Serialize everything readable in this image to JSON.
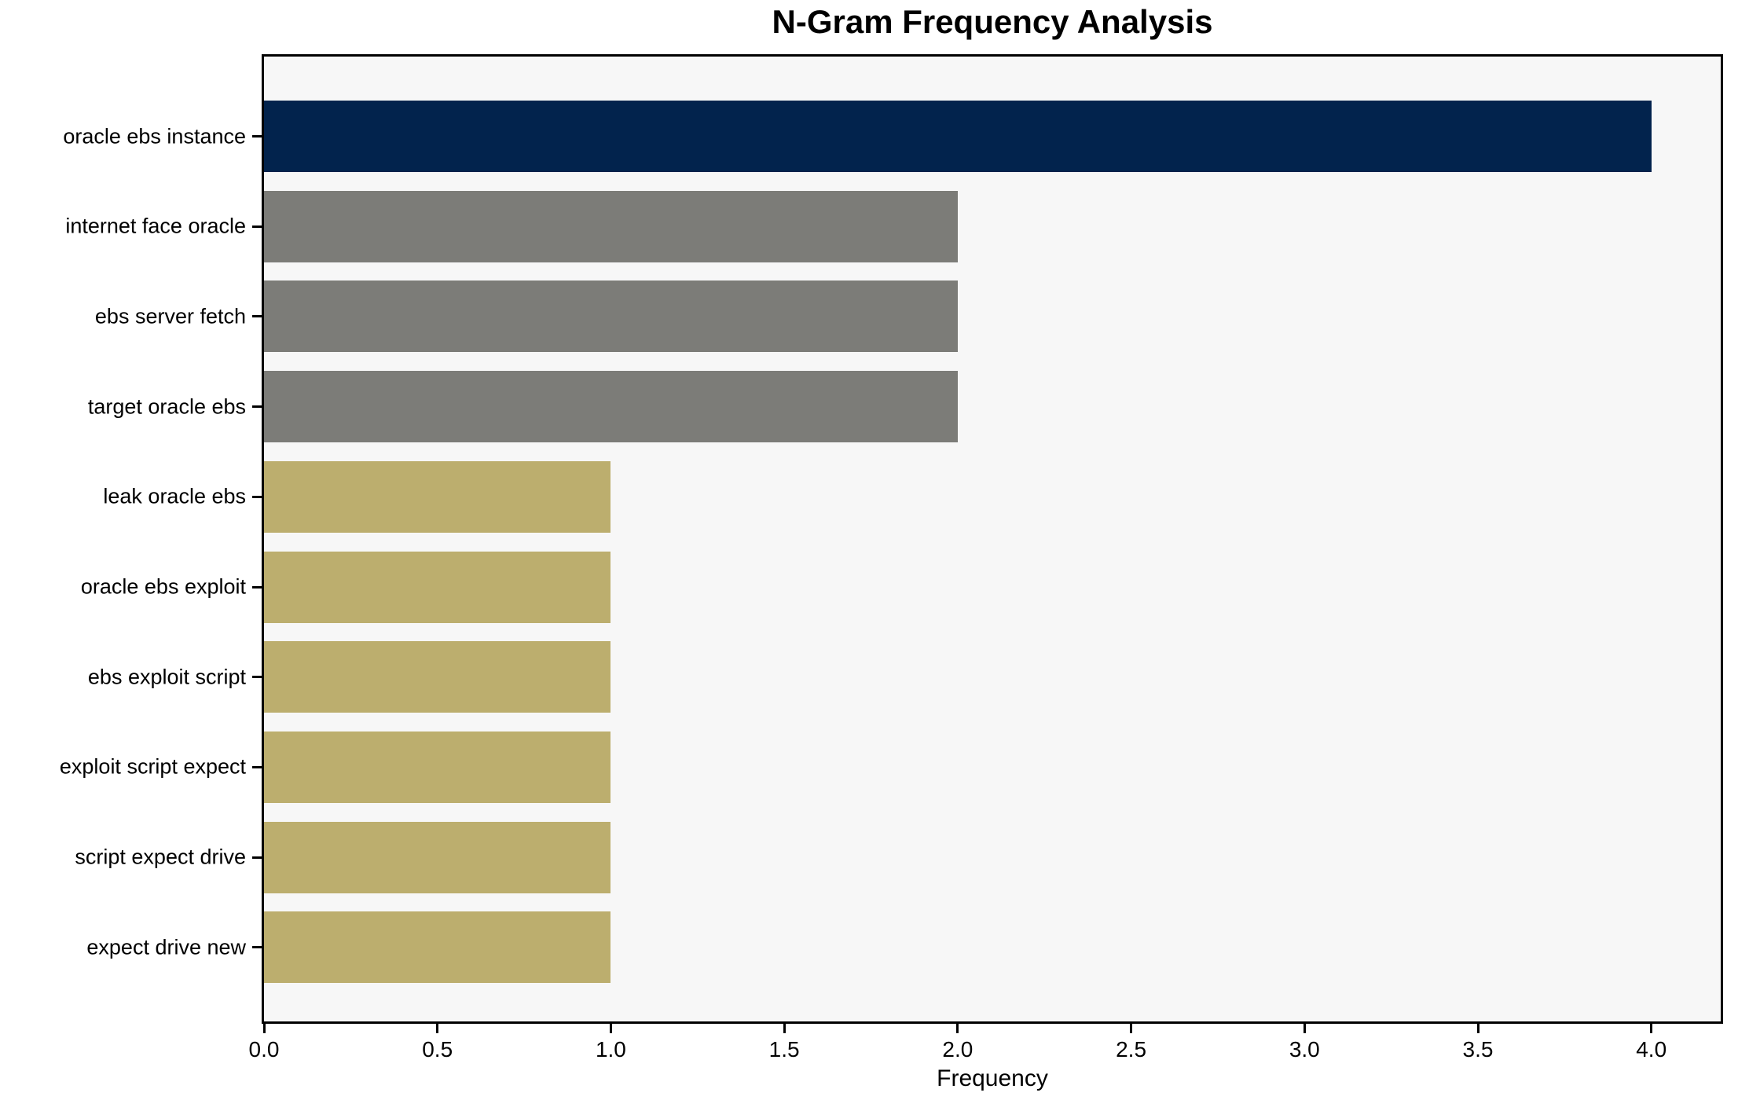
{
  "chart_data": {
    "type": "bar",
    "orientation": "horizontal",
    "title": "N-Gram Frequency Analysis",
    "xlabel": "Frequency",
    "ylabel": "",
    "categories": [
      "oracle ebs instance",
      "internet face oracle",
      "ebs server fetch",
      "target oracle ebs",
      "leak oracle ebs",
      "oracle ebs exploit",
      "ebs exploit script",
      "exploit script expect",
      "script expect drive",
      "expect drive new"
    ],
    "values": [
      4,
      2,
      2,
      2,
      1,
      1,
      1,
      1,
      1,
      1
    ],
    "bar_colors": [
      "#02234d",
      "#7c7c78",
      "#7c7c78",
      "#7c7c78",
      "#bcae6e",
      "#bcae6e",
      "#bcae6e",
      "#bcae6e",
      "#bcae6e",
      "#bcae6e"
    ],
    "xticks": [
      0.0,
      0.5,
      1.0,
      1.5,
      2.0,
      2.5,
      3.0,
      3.5,
      4.0
    ],
    "xlim": [
      0,
      4.2
    ],
    "grid": false,
    "legend": null,
    "colors": {
      "plot_background": "#f7f7f7",
      "spine": "#000000",
      "text": "#000000"
    }
  }
}
